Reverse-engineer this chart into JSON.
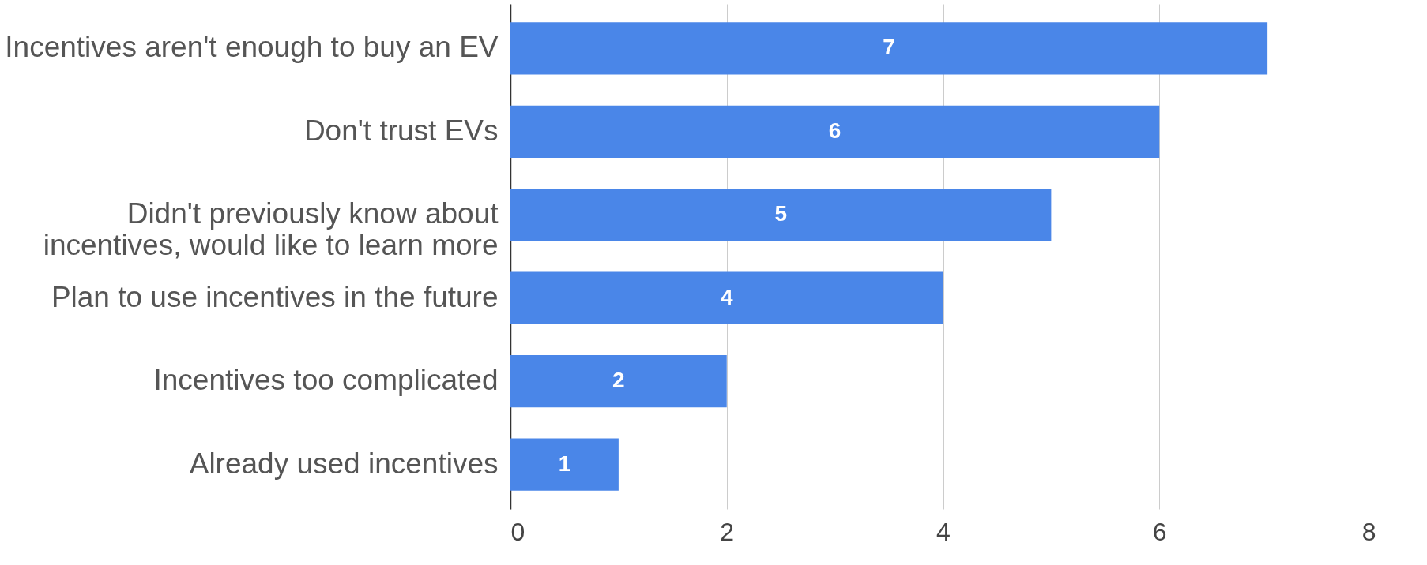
{
  "chart_data": {
    "type": "bar",
    "orientation": "horizontal",
    "categories": [
      "Incentives aren't enough to buy an EV",
      "Don't trust EVs",
      "Didn't previously know about incentives, would like to learn more",
      "Plan to use incentives in the future",
      "Incentives too complicated",
      "Already used incentives"
    ],
    "values": [
      7,
      6,
      5,
      4,
      2,
      1
    ],
    "color": "#4a86e8",
    "xlim": [
      0,
      8
    ],
    "xticks": [
      0,
      2,
      4,
      6,
      8
    ],
    "grid": "x",
    "data_labels": true
  }
}
